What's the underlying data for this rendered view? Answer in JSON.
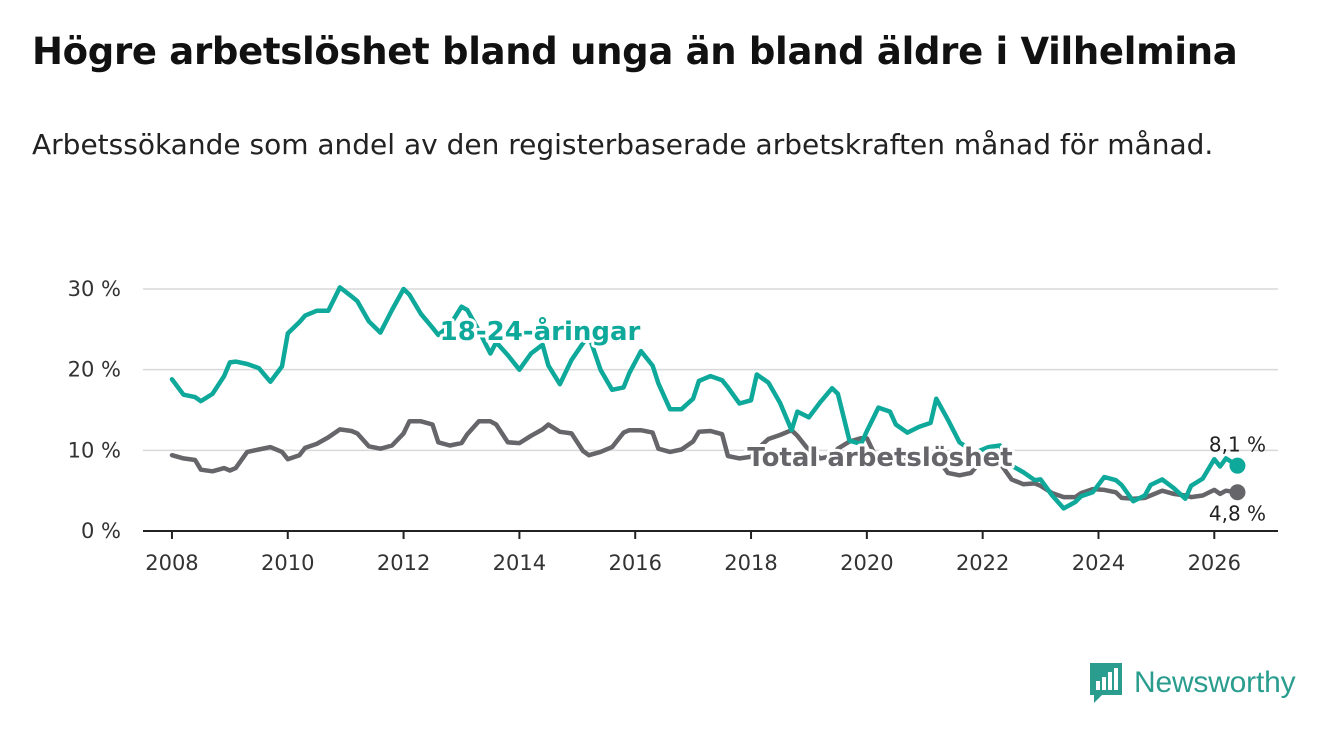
{
  "header": {
    "title": "Högre arbetslöshet bland unga än bland äldre i Vilhelmina",
    "subtitle": "Arbetssökande som andel av den registerbaserade arbetskraften månad för månad."
  },
  "brand": {
    "name": "Newsworthy",
    "icon": "newsworthy-chart-icon",
    "color": "#2a9d8f"
  },
  "chart_data": {
    "type": "line",
    "title": "Högre arbetslöshet bland unga än bland äldre i Vilhelmina",
    "subtitle": "Arbetssökande som andel av den registerbaserade arbetskraften månad för månad.",
    "xlabel": "",
    "ylabel": "",
    "x_range": [
      2007.5,
      2027.1
    ],
    "ylim": [
      0,
      30
    ],
    "grid": true,
    "y_ticks": [
      0,
      10,
      20,
      30
    ],
    "y_tick_labels": [
      "0 %",
      "10 %",
      "20 %",
      "30 %"
    ],
    "x_ticks": [
      2008,
      2010,
      2012,
      2014,
      2016,
      2018,
      2020,
      2022,
      2024,
      2026
    ],
    "x_tick_labels": [
      "2008",
      "2010",
      "2012",
      "2014",
      "2016",
      "2018",
      "2020",
      "2022",
      "2024",
      "2026"
    ],
    "series": [
      {
        "name": "Total arbetslöshet",
        "label": "Total arbetslöshet",
        "color": "#666569",
        "end_label": "4,8 %",
        "points": [
          [
            2008.0,
            9.4
          ],
          [
            2008.2,
            9.0
          ],
          [
            2008.4,
            8.8
          ],
          [
            2008.5,
            7.6
          ],
          [
            2008.7,
            7.4
          ],
          [
            2008.9,
            7.8
          ],
          [
            2009.0,
            7.5
          ],
          [
            2009.1,
            7.8
          ],
          [
            2009.3,
            9.8
          ],
          [
            2009.5,
            10.1
          ],
          [
            2009.7,
            10.4
          ],
          [
            2009.9,
            9.8
          ],
          [
            2010.0,
            8.9
          ],
          [
            2010.2,
            9.4
          ],
          [
            2010.3,
            10.3
          ],
          [
            2010.5,
            10.8
          ],
          [
            2010.7,
            11.6
          ],
          [
            2010.9,
            12.6
          ],
          [
            2011.1,
            12.4
          ],
          [
            2011.2,
            12.1
          ],
          [
            2011.4,
            10.5
          ],
          [
            2011.6,
            10.2
          ],
          [
            2011.8,
            10.6
          ],
          [
            2012.0,
            12.1
          ],
          [
            2012.1,
            13.6
          ],
          [
            2012.3,
            13.6
          ],
          [
            2012.5,
            13.2
          ],
          [
            2012.6,
            11.0
          ],
          [
            2012.8,
            10.6
          ],
          [
            2013.0,
            10.9
          ],
          [
            2013.1,
            12.0
          ],
          [
            2013.3,
            13.6
          ],
          [
            2013.5,
            13.6
          ],
          [
            2013.6,
            13.2
          ],
          [
            2013.8,
            11.0
          ],
          [
            2014.0,
            10.9
          ],
          [
            2014.2,
            11.8
          ],
          [
            2014.4,
            12.6
          ],
          [
            2014.5,
            13.2
          ],
          [
            2014.7,
            12.3
          ],
          [
            2014.9,
            12.1
          ],
          [
            2015.1,
            9.9
          ],
          [
            2015.2,
            9.4
          ],
          [
            2015.4,
            9.8
          ],
          [
            2015.6,
            10.4
          ],
          [
            2015.8,
            12.2
          ],
          [
            2015.9,
            12.5
          ],
          [
            2016.1,
            12.5
          ],
          [
            2016.3,
            12.2
          ],
          [
            2016.4,
            10.2
          ],
          [
            2016.6,
            9.8
          ],
          [
            2016.8,
            10.1
          ],
          [
            2017.0,
            11.1
          ],
          [
            2017.1,
            12.3
          ],
          [
            2017.3,
            12.4
          ],
          [
            2017.5,
            12.0
          ],
          [
            2017.6,
            9.3
          ],
          [
            2017.8,
            9.0
          ],
          [
            2018.0,
            9.2
          ],
          [
            2018.1,
            10.1
          ],
          [
            2018.3,
            11.4
          ],
          [
            2018.5,
            11.9
          ],
          [
            2018.7,
            12.5
          ],
          [
            2018.8,
            11.8
          ],
          [
            2019.0,
            10.0
          ],
          [
            2019.2,
            9.0
          ],
          [
            2019.4,
            9.3
          ],
          [
            2019.5,
            10.2
          ],
          [
            2019.7,
            11.1
          ],
          [
            2019.9,
            11.5
          ],
          [
            2020.0,
            11.5
          ],
          [
            2020.2,
            8.5
          ],
          [
            2020.4,
            8.3
          ],
          [
            2020.5,
            8.7
          ],
          [
            2020.7,
            9.3
          ],
          [
            2020.9,
            9.3
          ],
          [
            2021.1,
            9.6
          ],
          [
            2021.2,
            9.2
          ],
          [
            2021.4,
            7.2
          ],
          [
            2021.6,
            6.9
          ],
          [
            2021.8,
            7.2
          ],
          [
            2021.9,
            8.1
          ],
          [
            2022.1,
            8.5
          ],
          [
            2022.3,
            8.4
          ],
          [
            2022.5,
            6.4
          ],
          [
            2022.7,
            5.8
          ],
          [
            2022.9,
            5.9
          ],
          [
            2023.0,
            5.6
          ],
          [
            2023.2,
            4.7
          ],
          [
            2023.4,
            4.2
          ],
          [
            2023.6,
            4.2
          ],
          [
            2023.7,
            4.7
          ],
          [
            2023.9,
            5.2
          ],
          [
            2024.1,
            5.1
          ],
          [
            2024.3,
            4.8
          ],
          [
            2024.4,
            4.1
          ],
          [
            2024.6,
            4.0
          ],
          [
            2024.8,
            4.1
          ],
          [
            2024.9,
            4.4
          ],
          [
            2025.1,
            5.0
          ],
          [
            2025.3,
            4.6
          ],
          [
            2025.5,
            4.4
          ],
          [
            2025.6,
            4.2
          ],
          [
            2025.8,
            4.4
          ],
          [
            2026.0,
            5.1
          ],
          [
            2026.1,
            4.6
          ],
          [
            2026.2,
            5.0
          ],
          [
            2026.4,
            4.8
          ]
        ]
      },
      {
        "name": "18-24-åringar",
        "label": "18-24-åringar",
        "color": "#0ea99a",
        "end_label": "8,1 %",
        "points": [
          [
            2008.0,
            18.8
          ],
          [
            2008.2,
            16.9
          ],
          [
            2008.4,
            16.6
          ],
          [
            2008.5,
            16.1
          ],
          [
            2008.7,
            17.0
          ],
          [
            2008.9,
            19.2
          ],
          [
            2009.0,
            20.9
          ],
          [
            2009.1,
            21.0
          ],
          [
            2009.3,
            20.7
          ],
          [
            2009.5,
            20.2
          ],
          [
            2009.7,
            18.5
          ],
          [
            2009.9,
            20.4
          ],
          [
            2010.0,
            24.5
          ],
          [
            2010.2,
            25.9
          ],
          [
            2010.3,
            26.7
          ],
          [
            2010.5,
            27.3
          ],
          [
            2010.7,
            27.3
          ],
          [
            2010.9,
            30.2
          ],
          [
            2011.1,
            29.1
          ],
          [
            2011.2,
            28.5
          ],
          [
            2011.4,
            26.0
          ],
          [
            2011.6,
            24.6
          ],
          [
            2011.8,
            27.4
          ],
          [
            2012.0,
            30.0
          ],
          [
            2012.1,
            29.3
          ],
          [
            2012.3,
            26.9
          ],
          [
            2012.5,
            25.2
          ],
          [
            2012.6,
            24.3
          ],
          [
            2012.8,
            25.5
          ],
          [
            2013.0,
            27.8
          ],
          [
            2013.1,
            27.4
          ],
          [
            2013.3,
            24.8
          ],
          [
            2013.5,
            22.0
          ],
          [
            2013.6,
            23.4
          ],
          [
            2013.8,
            21.8
          ],
          [
            2014.0,
            20.0
          ],
          [
            2014.2,
            22.0
          ],
          [
            2014.4,
            23.1
          ],
          [
            2014.5,
            20.5
          ],
          [
            2014.7,
            18.2
          ],
          [
            2014.9,
            21.2
          ],
          [
            2015.1,
            23.3
          ],
          [
            2015.2,
            24.2
          ],
          [
            2015.4,
            20.0
          ],
          [
            2015.6,
            17.5
          ],
          [
            2015.8,
            17.8
          ],
          [
            2015.9,
            19.6
          ],
          [
            2016.1,
            22.3
          ],
          [
            2016.3,
            20.5
          ],
          [
            2016.4,
            18.3
          ],
          [
            2016.6,
            15.1
          ],
          [
            2016.8,
            15.1
          ],
          [
            2017.0,
            16.4
          ],
          [
            2017.1,
            18.6
          ],
          [
            2017.3,
            19.2
          ],
          [
            2017.5,
            18.7
          ],
          [
            2017.6,
            17.8
          ],
          [
            2017.8,
            15.8
          ],
          [
            2018.0,
            16.2
          ],
          [
            2018.1,
            19.4
          ],
          [
            2018.3,
            18.4
          ],
          [
            2018.5,
            15.9
          ],
          [
            2018.7,
            12.5
          ],
          [
            2018.8,
            14.8
          ],
          [
            2019.0,
            14.1
          ],
          [
            2019.2,
            16.0
          ],
          [
            2019.4,
            17.7
          ],
          [
            2019.5,
            17.0
          ],
          [
            2019.7,
            11.2
          ],
          [
            2019.9,
            10.8
          ],
          [
            2020.0,
            12.4
          ],
          [
            2020.2,
            15.3
          ],
          [
            2020.4,
            14.8
          ],
          [
            2020.5,
            13.2
          ],
          [
            2020.7,
            12.2
          ],
          [
            2020.9,
            12.9
          ],
          [
            2021.1,
            13.4
          ],
          [
            2021.2,
            16.4
          ],
          [
            2021.4,
            13.8
          ],
          [
            2021.6,
            11.0
          ],
          [
            2021.8,
            10.0
          ],
          [
            2021.9,
            9.8
          ],
          [
            2022.1,
            10.4
          ],
          [
            2022.3,
            10.6
          ],
          [
            2022.5,
            8.1
          ],
          [
            2022.7,
            7.3
          ],
          [
            2022.9,
            6.3
          ],
          [
            2023.0,
            6.4
          ],
          [
            2023.2,
            4.4
          ],
          [
            2023.4,
            2.8
          ],
          [
            2023.6,
            3.6
          ],
          [
            2023.7,
            4.3
          ],
          [
            2023.9,
            4.8
          ],
          [
            2024.1,
            6.7
          ],
          [
            2024.3,
            6.3
          ],
          [
            2024.4,
            5.7
          ],
          [
            2024.6,
            3.7
          ],
          [
            2024.8,
            4.4
          ],
          [
            2024.9,
            5.7
          ],
          [
            2025.1,
            6.4
          ],
          [
            2025.3,
            5.3
          ],
          [
            2025.5,
            4.0
          ],
          [
            2025.6,
            5.6
          ],
          [
            2025.8,
            6.5
          ],
          [
            2026.0,
            8.9
          ],
          [
            2026.1,
            8.0
          ],
          [
            2026.2,
            9.0
          ],
          [
            2026.4,
            8.1
          ]
        ]
      }
    ]
  }
}
